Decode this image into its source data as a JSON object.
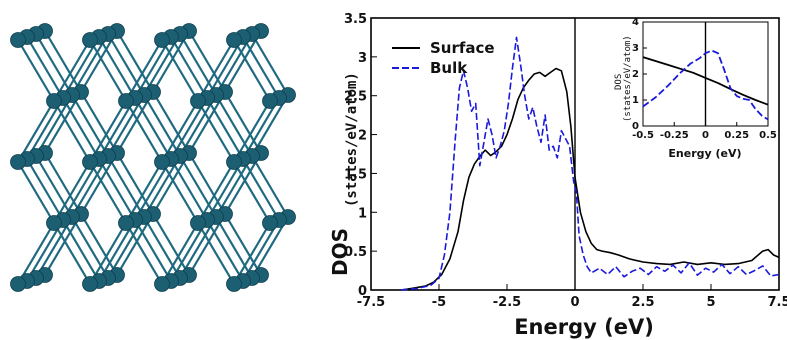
{
  "colors": {
    "surface": "#000000",
    "bulk": "#1a1adc",
    "atom": "#1c5f73",
    "bond": "#1f6a80"
  },
  "crystal": {
    "icon": "crystal-lattice-image",
    "rows": 5,
    "cols": 4,
    "layers": 4
  },
  "chart_data": [
    {
      "type": "line",
      "title": "",
      "xlabel": "Energy (eV)",
      "ylabel_main": "DOS",
      "ylabel_units": "(states/eV/atom)",
      "xlim": [
        -7.5,
        7.5
      ],
      "ylim": [
        0,
        3.5
      ],
      "x_ticks": [
        "-7.5",
        "-5",
        "-2.5",
        "0",
        "2.5",
        "5",
        "7.5"
      ],
      "y_ticks": [
        "0",
        "0.5",
        "1",
        "1.5",
        "2",
        "2.5",
        "3",
        "3.5"
      ],
      "x_tick_values": [
        -7.5,
        -5,
        -2.5,
        0,
        2.5,
        5,
        7.5
      ],
      "y_tick_values": [
        0,
        0.5,
        1,
        1.5,
        2,
        2.5,
        3,
        3.5
      ],
      "fermi_level": 0,
      "legend": {
        "position": "top-left",
        "entries": [
          "Surface",
          "Bulk"
        ]
      },
      "series": [
        {
          "name": "Surface",
          "style": "solid",
          "x": [
            -6.4,
            -6.0,
            -5.5,
            -5.2,
            -4.9,
            -4.6,
            -4.3,
            -4.1,
            -3.9,
            -3.7,
            -3.5,
            -3.3,
            -3.1,
            -2.9,
            -2.7,
            -2.5,
            -2.3,
            -2.1,
            -1.9,
            -1.7,
            -1.5,
            -1.3,
            -1.1,
            -0.9,
            -0.7,
            -0.5,
            -0.3,
            -0.15,
            0.0,
            0.2,
            0.4,
            0.6,
            0.8,
            1.0,
            1.3,
            1.6,
            2.0,
            2.5,
            3.0,
            3.5,
            4.0,
            4.5,
            5.0,
            5.5,
            6.0,
            6.5,
            6.9,
            7.1,
            7.3,
            7.5
          ],
          "y": [
            0.0,
            0.02,
            0.05,
            0.1,
            0.2,
            0.4,
            0.75,
            1.15,
            1.45,
            1.62,
            1.72,
            1.8,
            1.73,
            1.78,
            1.85,
            2.0,
            2.2,
            2.45,
            2.6,
            2.7,
            2.78,
            2.8,
            2.75,
            2.8,
            2.85,
            2.82,
            2.55,
            2.1,
            1.45,
            1.0,
            0.75,
            0.6,
            0.52,
            0.5,
            0.48,
            0.45,
            0.4,
            0.36,
            0.34,
            0.33,
            0.36,
            0.33,
            0.35,
            0.33,
            0.34,
            0.38,
            0.5,
            0.52,
            0.45,
            0.42
          ]
        },
        {
          "name": "Bulk",
          "style": "dashed",
          "x": [
            -6.4,
            -5.8,
            -5.3,
            -5.0,
            -4.8,
            -4.6,
            -4.4,
            -4.25,
            -4.1,
            -3.95,
            -3.8,
            -3.65,
            -3.5,
            -3.35,
            -3.2,
            -3.05,
            -2.9,
            -2.75,
            -2.6,
            -2.45,
            -2.3,
            -2.15,
            -2.0,
            -1.85,
            -1.7,
            -1.55,
            -1.4,
            -1.25,
            -1.1,
            -0.95,
            -0.8,
            -0.65,
            -0.5,
            -0.35,
            -0.2,
            -0.05,
            0.05,
            0.15,
            0.3,
            0.45,
            0.6,
            0.9,
            1.2,
            1.5,
            1.8,
            2.1,
            2.4,
            2.7,
            3.0,
            3.3,
            3.6,
            3.9,
            4.2,
            4.5,
            4.8,
            5.1,
            5.4,
            5.7,
            6.0,
            6.3,
            6.6,
            6.9,
            7.2,
            7.5
          ],
          "y": [
            0.0,
            0.02,
            0.06,
            0.15,
            0.45,
            1.0,
            1.95,
            2.6,
            2.82,
            2.6,
            2.3,
            2.4,
            1.6,
            1.9,
            2.2,
            2.0,
            1.7,
            1.85,
            2.05,
            2.4,
            2.85,
            3.25,
            2.9,
            2.5,
            2.2,
            2.35,
            2.1,
            1.9,
            2.25,
            1.8,
            1.85,
            1.7,
            2.05,
            1.95,
            1.85,
            1.4,
            1.25,
            0.7,
            0.45,
            0.3,
            0.22,
            0.28,
            0.2,
            0.3,
            0.17,
            0.24,
            0.28,
            0.2,
            0.3,
            0.24,
            0.32,
            0.22,
            0.35,
            0.19,
            0.28,
            0.23,
            0.33,
            0.21,
            0.3,
            0.2,
            0.25,
            0.31,
            0.18,
            0.2
          ]
        }
      ]
    },
    {
      "type": "line",
      "title": "",
      "xlabel": "Energy (eV)",
      "ylabel_main": "DOS",
      "ylabel_units": "(states/eV/atom)",
      "xlim": [
        -0.5,
        0.5
      ],
      "ylim": [
        0,
        4
      ],
      "x_ticks": [
        "-0.5",
        "-0.25",
        "0",
        "0.25",
        "0.5"
      ],
      "y_ticks": [
        "0",
        "1",
        "2",
        "3",
        "4"
      ],
      "x_tick_values": [
        -0.5,
        -0.25,
        0,
        0.25,
        0.5
      ],
      "y_tick_values": [
        0,
        1,
        2,
        3,
        4
      ],
      "fermi_level": 0,
      "series": [
        {
          "name": "Surface",
          "style": "solid",
          "x": [
            -0.5,
            -0.4,
            -0.3,
            -0.2,
            -0.1,
            0.0,
            0.1,
            0.2,
            0.3,
            0.4,
            0.5
          ],
          "y": [
            2.65,
            2.5,
            2.35,
            2.2,
            2.05,
            1.85,
            1.65,
            1.42,
            1.2,
            1.0,
            0.82
          ]
        },
        {
          "name": "Bulk",
          "style": "dashed",
          "x": [
            -0.5,
            -0.4,
            -0.3,
            -0.2,
            -0.12,
            -0.05,
            0.0,
            0.05,
            0.1,
            0.15,
            0.2,
            0.25,
            0.3,
            0.35,
            0.4,
            0.45,
            0.5
          ],
          "y": [
            0.75,
            1.1,
            1.55,
            2.05,
            2.4,
            2.6,
            2.8,
            2.9,
            2.8,
            2.15,
            1.45,
            1.15,
            1.05,
            1.0,
            0.65,
            0.4,
            0.25
          ]
        }
      ]
    }
  ]
}
